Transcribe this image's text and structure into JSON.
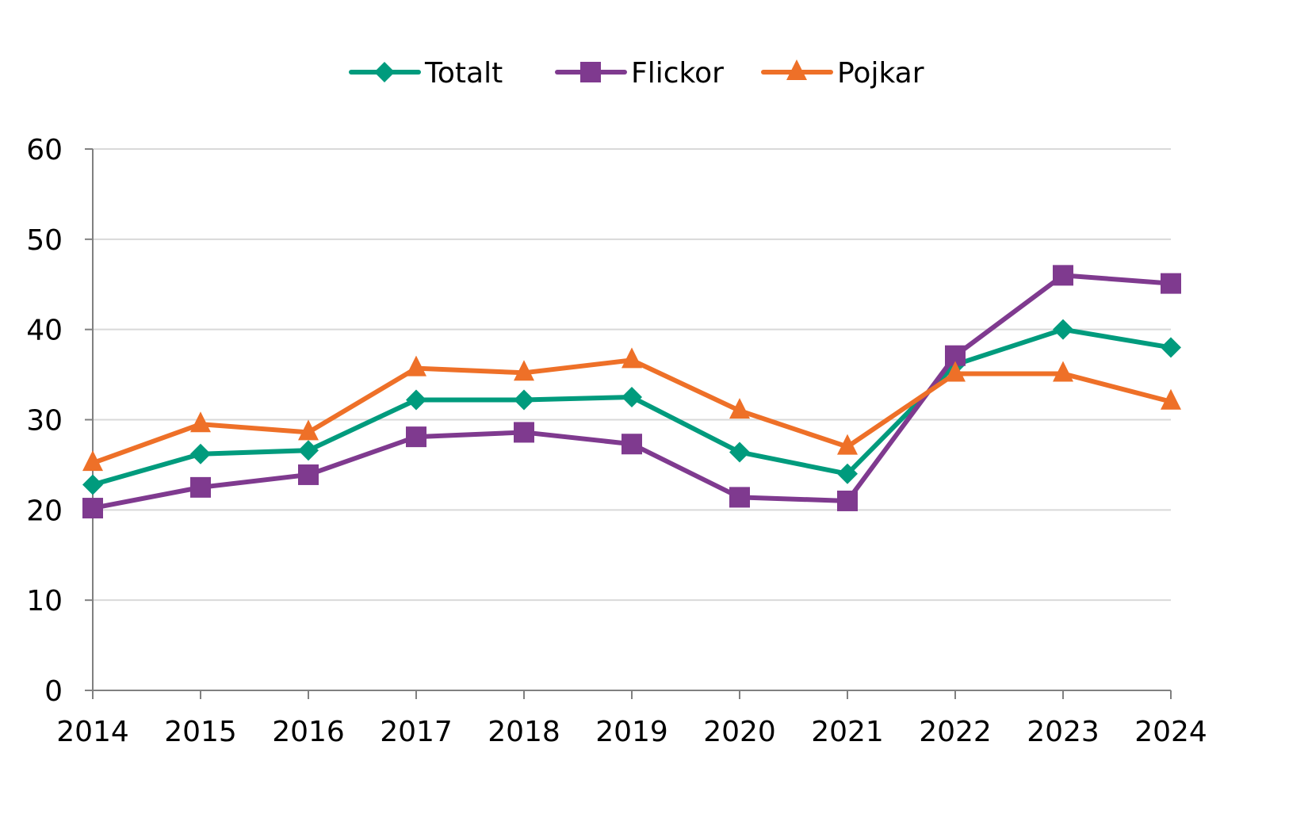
{
  "chart_data": {
    "type": "line",
    "title": "",
    "xlabel": "",
    "ylabel": "",
    "categories": [
      "2014",
      "2015",
      "2016",
      "2017",
      "2018",
      "2019",
      "2020",
      "2021",
      "2022",
      "2023",
      "2024"
    ],
    "ylim": [
      0,
      60
    ],
    "yticks": [
      "0",
      "10",
      "20",
      "30",
      "40",
      "50",
      "60"
    ],
    "grid": true,
    "legend_position": "top",
    "series": [
      {
        "name": "Totalt",
        "color": "#009B7D",
        "marker": "diamond",
        "values": [
          22.8,
          26.2,
          26.6,
          32.2,
          32.2,
          32.5,
          26.4,
          24.0,
          36.1,
          40.0,
          38.0
        ]
      },
      {
        "name": "Flickor",
        "color": "#7F3A8F",
        "marker": "square",
        "values": [
          20.2,
          22.5,
          23.9,
          28.1,
          28.6,
          27.3,
          21.4,
          21.0,
          37.1,
          46.0,
          45.1
        ]
      },
      {
        "name": "Pojkar",
        "color": "#EE7028",
        "marker": "triangle",
        "values": [
          25.2,
          29.5,
          28.6,
          35.7,
          35.2,
          36.6,
          31.0,
          27.0,
          35.1,
          35.1,
          32.0
        ]
      }
    ]
  }
}
